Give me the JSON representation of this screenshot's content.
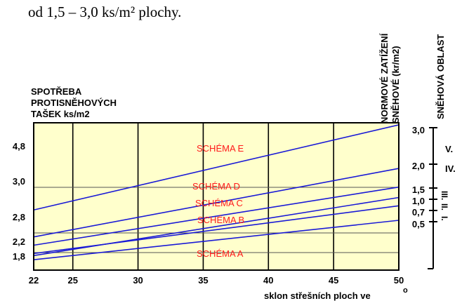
{
  "top_text": "od 1,5 – 3,0 ks/m² plochy.",
  "chart_data": {
    "type": "line",
    "left_title_lines": [
      "SPOTŘEBA",
      "PROTISNĚHOVÝCH",
      "TAŠEK  ks/m2"
    ],
    "right_header_load": [
      "NORMOVÉ ZATÍŽENÍ",
      "SNĚHOVÉ (kr/m2)"
    ],
    "right_header_zone": "SNĚHOVÁ OBLAST",
    "xlabel": "sklon střešních ploch ve",
    "xlabel_unit": "o",
    "x_ticks": [
      22,
      25,
      30,
      35,
      40,
      45,
      50
    ],
    "xlim": [
      22,
      50
    ],
    "x_gridlines": [
      25,
      30,
      35,
      40,
      45
    ],
    "left_ticks": [
      "4,8",
      "3,0",
      "2,8",
      "2,2",
      "1,8"
    ],
    "right_load_ticks": [
      "3,0",
      "2,0",
      "1,5",
      "1,0",
      "0,7",
      "0,5"
    ],
    "zones": [
      "V.",
      "IV.",
      "III.",
      "II.",
      "I."
    ],
    "series": [
      {
        "name": "SCHÉMA E",
        "x": [
          22,
          50
        ],
        "y": [
          2.95,
          5.0
        ]
      },
      {
        "name": "SCHÉMA D",
        "x": [
          22,
          50
        ],
        "y": [
          2.3,
          3.95
        ]
      },
      {
        "name": "SCHÉMA C",
        "x": [
          22,
          50
        ],
        "y": [
          2.1,
          3.5
        ]
      },
      {
        "name": "SCHÉMA B",
        "x": [
          22,
          50
        ],
        "y": [
          1.9,
          3.05
        ]
      },
      {
        "name": "SCHÉMA A",
        "x": [
          22,
          50
        ],
        "y": [
          1.75,
          2.7
        ]
      }
    ],
    "extra_line": {
      "x": [
        22,
        50
      ],
      "y": [
        1.85,
        3.25
      ]
    },
    "colors": {
      "plot_background": "#ffffcc",
      "lines": "#1a1ad6",
      "scheme_labels": "#ff1a1a",
      "grid": "#000000",
      "text": "#000000"
    }
  }
}
